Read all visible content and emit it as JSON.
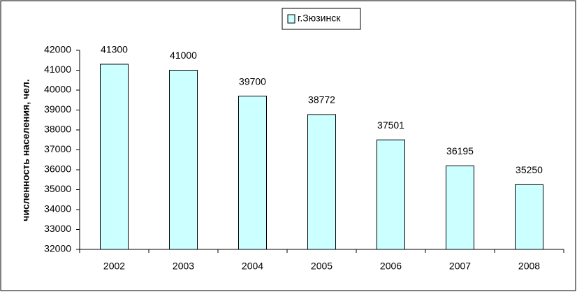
{
  "chart_data": {
    "type": "bar",
    "ylabel": "численность населения, чел.",
    "categories": [
      "2002",
      "2003",
      "2004",
      "2005",
      "2006",
      "2007",
      "2008"
    ],
    "series": [
      {
        "name": "г.Зюзинск",
        "color": "#ccffff",
        "values": [
          41300,
          41000,
          39700,
          38772,
          37501,
          36195,
          35250
        ]
      }
    ],
    "ylim": [
      32000,
      42000
    ],
    "yticks": [
      32000,
      33000,
      34000,
      35000,
      36000,
      37000,
      38000,
      39000,
      40000,
      41000,
      42000
    ],
    "grid": false,
    "legend": "top"
  }
}
